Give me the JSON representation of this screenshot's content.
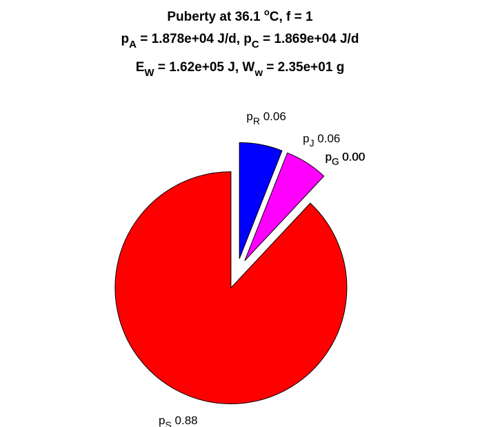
{
  "title": {
    "line1": {
      "a": "Puberty at 36.1 ",
      "sup": "o",
      "b": "C, f = 1"
    },
    "line2": {
      "a": "p",
      "sub_a": "A",
      "b": " = 1.878e+04 J/d,  p",
      "sub_b": "C",
      "c": " = 1.869e+04 J/d"
    },
    "line3": {
      "a": "E",
      "sub_a": "W",
      "b": " = 1.62e+05 J, W",
      "sub_b": "w",
      "c": " = 2.35e+01 g"
    }
  },
  "chart_data": {
    "type": "pie",
    "exploded": true,
    "slices": [
      {
        "label": "p",
        "sub": "R",
        "value": 0.06,
        "value_text": "0.06",
        "color": "#0000ff"
      },
      {
        "label": "p",
        "sub": "J",
        "value": 0.06,
        "value_text": "0.06",
        "color": "#ff00ff"
      },
      {
        "label": "p",
        "sub": "C",
        "value": 0.0,
        "value_text": "0.00",
        "color": "#00ffff"
      },
      {
        "label": "p",
        "sub": "G",
        "value": 0.0,
        "value_text": "0.00",
        "color": "#00ff00"
      },
      {
        "label": "p",
        "sub": "S",
        "value": 0.88,
        "value_text": "0.88",
        "color": "#ff0000"
      }
    ]
  }
}
